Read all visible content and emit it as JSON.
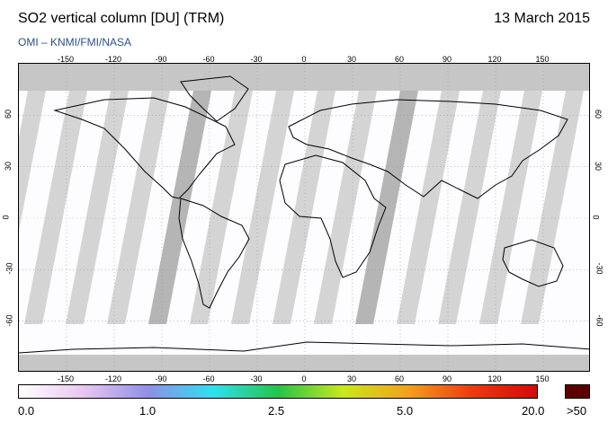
{
  "header": {
    "title": "SO2 vertical column [DU] (TRM)",
    "date": "13 March 2015",
    "credit": "OMI  –  KNMI/FMI/NASA"
  },
  "map": {
    "lon_ticks": [
      "-150",
      "-120",
      "-90",
      "-60",
      "-30",
      "0",
      "30",
      "60",
      "90",
      "120",
      "150"
    ],
    "lat_ticks": [
      "60",
      "30",
      "0",
      "-30",
      "-60"
    ],
    "colors": {
      "land_outline": "#000000",
      "orbit_gap": "#cccccc",
      "orbit_gap_dark": "#a8a8a8",
      "no_data": "#c6c6c6",
      "background": "#fdfcfe"
    }
  },
  "colorbar": {
    "labels": [
      "0.0",
      "1.0",
      "2.5",
      "5.0",
      "20.0",
      ">50"
    ],
    "colors": [
      "#ffffff",
      "#e9c6f0",
      "#8f8fe6",
      "#2fe0f0",
      "#24c44a",
      "#c8e81e",
      "#f2a21c",
      "#ec3a12",
      "#d20a0a"
    ],
    "max_color": "#5a0000"
  }
}
